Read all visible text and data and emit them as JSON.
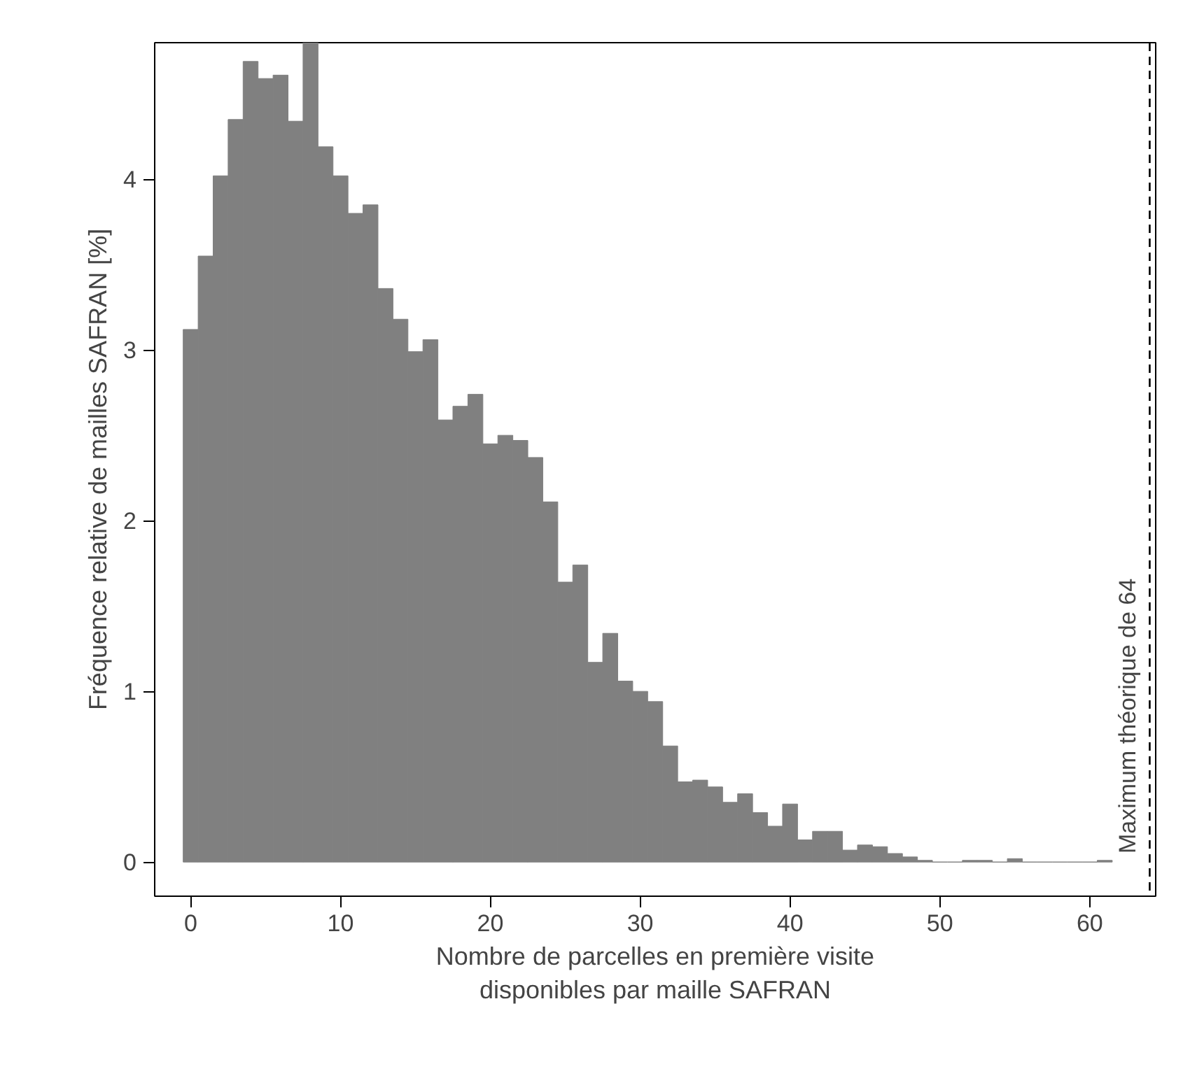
{
  "chart_data": {
    "type": "histogram",
    "xlabel": "Nombre de parcelles en première visite\ndisponibles par maille SAFRAN",
    "ylabel": "Fréquence relative de mailles SAFRAN [%]",
    "bins": [
      -0.5,
      0.5,
      1.5,
      2.5,
      3.5,
      4.5,
      5.5,
      6.5,
      7.5,
      8.5,
      9.5,
      10.5,
      11.5,
      12.5,
      13.5,
      14.5,
      15.5,
      16.5,
      17.5,
      18.5,
      19.5,
      20.5,
      21.5,
      22.5,
      23.5,
      24.5,
      25.5,
      26.5,
      27.5,
      28.5,
      29.5,
      30.5,
      31.5,
      32.5,
      33.5,
      34.5,
      35.5,
      36.5,
      37.5,
      38.5,
      39.5,
      40.5,
      41.5,
      42.5,
      43.5,
      44.5,
      45.5,
      46.5,
      47.5,
      48.5,
      49.5,
      50.5,
      51.5,
      52.5,
      53.5,
      54.5,
      55.5,
      56.5,
      57.5,
      58.5,
      59.5,
      60.5,
      61.5
    ],
    "values": [
      3.12,
      3.55,
      4.02,
      4.35,
      4.69,
      4.59,
      4.61,
      4.34,
      4.8,
      4.19,
      4.02,
      3.8,
      3.85,
      3.36,
      3.18,
      2.99,
      3.06,
      2.59,
      2.67,
      2.74,
      2.45,
      2.5,
      2.47,
      2.37,
      2.11,
      1.64,
      1.74,
      1.17,
      1.34,
      1.06,
      1.0,
      0.94,
      0.68,
      0.47,
      0.48,
      0.44,
      0.35,
      0.4,
      0.29,
      0.21,
      0.34,
      0.13,
      0.18,
      0.18,
      0.07,
      0.1,
      0.09,
      0.05,
      0.03,
      0.01,
      0,
      0,
      0.01,
      0.01,
      0,
      0.02,
      0,
      0,
      0,
      0,
      0,
      0.01
    ],
    "color": "#808080",
    "xlim": [
      -2.4,
      64.4
    ],
    "ylim": [
      -0.2,
      4.8
    ],
    "xticks": [
      0,
      10,
      20,
      30,
      40,
      50,
      60
    ],
    "yticks": [
      0,
      1,
      2,
      3,
      4
    ],
    "grid": false,
    "ref_lines": [
      {
        "axis": "x",
        "value": 64,
        "label": "Maximum théorique de 64",
        "line_style": "dashed",
        "color": "#000000"
      }
    ]
  }
}
